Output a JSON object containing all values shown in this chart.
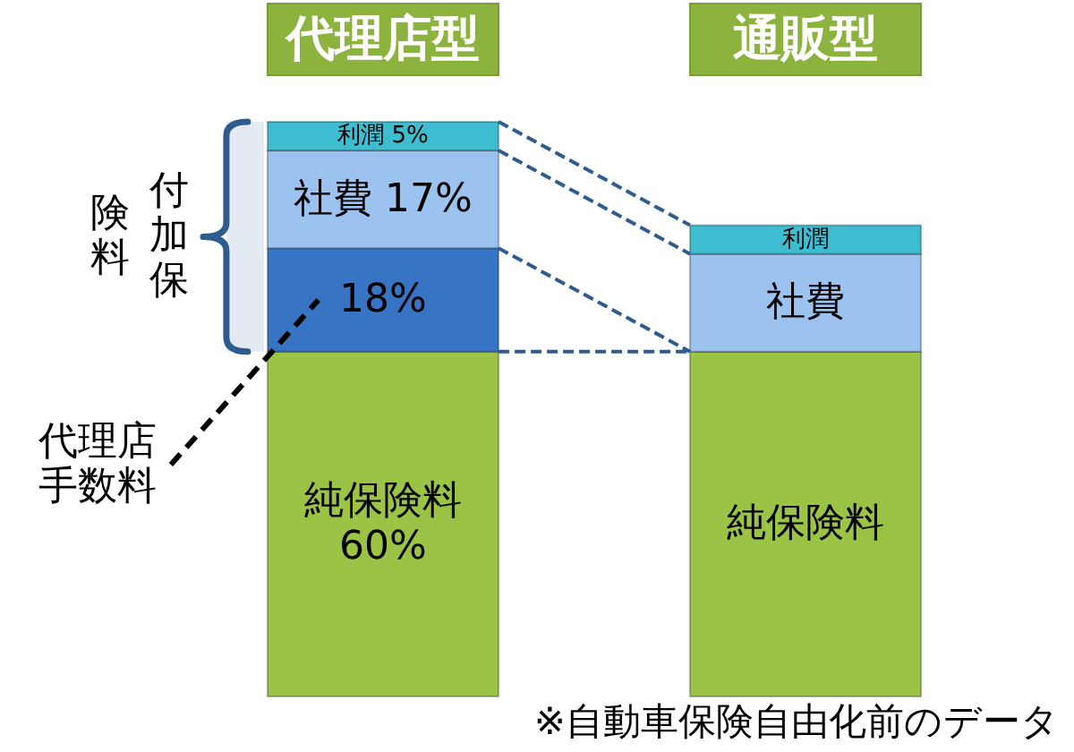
{
  "chart_data": {
    "type": "bar",
    "stacked": true,
    "categories": [
      "代理店型",
      "通販型"
    ],
    "series": [
      {
        "name": "純保険料",
        "color": "#9bc447",
        "values": [
          60,
          60
        ],
        "value_labels": [
          "60%",
          null
        ]
      },
      {
        "name": "代理店手数料",
        "color": "#3874c4",
        "values": [
          18,
          null
        ],
        "value_labels": [
          "18%",
          null
        ]
      },
      {
        "name": "社費",
        "color": "#9cc2f0",
        "values": [
          17,
          17
        ],
        "value_labels": [
          "17%",
          null
        ]
      },
      {
        "name": "利潤",
        "color": "#3ebcd0",
        "values": [
          5,
          5
        ],
        "value_labels": [
          "5%",
          null
        ]
      }
    ],
    "bands": [
      {
        "axis": "y",
        "from": 60,
        "to": 100,
        "label": "付加保険料",
        "color": "#2f5c8f"
      }
    ],
    "annotations": [
      "※自動車保険自由化前のデータ"
    ]
  }
}
